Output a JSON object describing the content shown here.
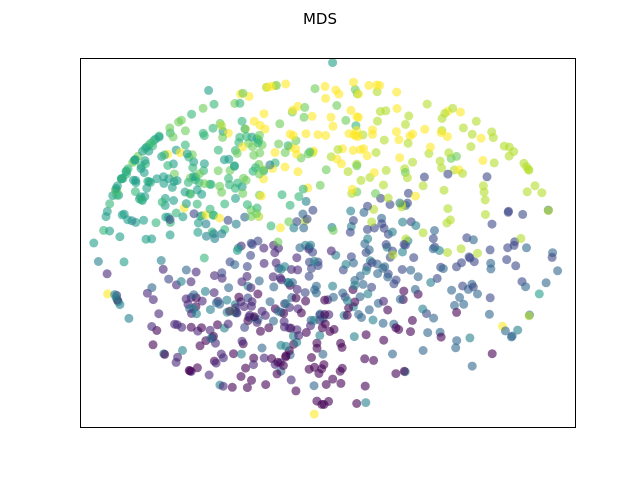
{
  "chart_data": {
    "type": "scatter",
    "title": "MDS",
    "xlabel": "",
    "ylabel": "",
    "xlim": [
      -2.7,
      2.7
    ],
    "ylim": [
      -2.0,
      2.0
    ],
    "xticks": [],
    "yticks": [],
    "grid": false,
    "legend": "none",
    "colormap": "viridis",
    "color_value_range": [
      0,
      9
    ],
    "marker_alpha": 0.6,
    "clusters": [
      {
        "color_value": 0,
        "cx": -0.3,
        "cy": -1.1,
        "sx": 0.85,
        "sy": 0.38,
        "n": 95
      },
      {
        "color_value": 1,
        "cx": -0.9,
        "cy": -0.7,
        "sx": 0.65,
        "sy": 0.45,
        "n": 85
      },
      {
        "color_value": 2,
        "cx": 0.5,
        "cy": -0.1,
        "sx": 0.9,
        "sy": 0.35,
        "n": 85
      },
      {
        "color_value": 3,
        "cx": 0.6,
        "cy": -0.5,
        "sx": 1.0,
        "sy": 0.45,
        "n": 90
      },
      {
        "color_value": 4,
        "cx": -0.5,
        "cy": -0.55,
        "sx": 1.1,
        "sy": 0.55,
        "n": 80
      },
      {
        "color_value": 5,
        "cx": -1.8,
        "cy": 0.55,
        "sx": 0.45,
        "sy": 0.3,
        "n": 75
      },
      {
        "color_value": 6,
        "cx": -1.35,
        "cy": 0.8,
        "sx": 0.55,
        "sy": 0.35,
        "n": 80
      },
      {
        "color_value": 7,
        "cx": -0.7,
        "cy": 1.0,
        "sx": 0.7,
        "sy": 0.45,
        "n": 70
      },
      {
        "color_value": 8,
        "cx": 1.0,
        "cy": 0.7,
        "sx": 0.9,
        "sy": 0.5,
        "n": 75
      },
      {
        "color_value": 9,
        "cx": 0.0,
        "cy": 1.15,
        "sx": 0.75,
        "sy": 0.4,
        "n": 85
      }
    ],
    "outliers": [
      {
        "x": 0.05,
        "y": 1.95,
        "color_value": 5
      },
      {
        "x": -1.3,
        "y": 1.65,
        "color_value": 5
      },
      {
        "x": -2.55,
        "y": 0.0,
        "color_value": 5
      },
      {
        "x": -2.5,
        "y": -0.2,
        "color_value": 4
      },
      {
        "x": 2.5,
        "y": -0.3,
        "color_value": 3
      },
      {
        "x": 2.4,
        "y": 0.35,
        "color_value": 8
      },
      {
        "x": -2.4,
        "y": -0.55,
        "color_value": 9
      },
      {
        "x": 1.9,
        "y": -0.9,
        "color_value": 9
      },
      {
        "x": -0.15,
        "y": -1.85,
        "color_value": 9
      },
      {
        "x": 1.7,
        "y": 0.55,
        "color_value": 8
      },
      {
        "x": 1.3,
        "y": 1.15,
        "color_value": 9
      },
      {
        "x": 2.1,
        "y": 0.05,
        "color_value": 8
      },
      {
        "x": 1.4,
        "y": -0.75,
        "color_value": 0
      },
      {
        "x": 2.3,
        "y": -0.55,
        "color_value": 5
      }
    ]
  }
}
